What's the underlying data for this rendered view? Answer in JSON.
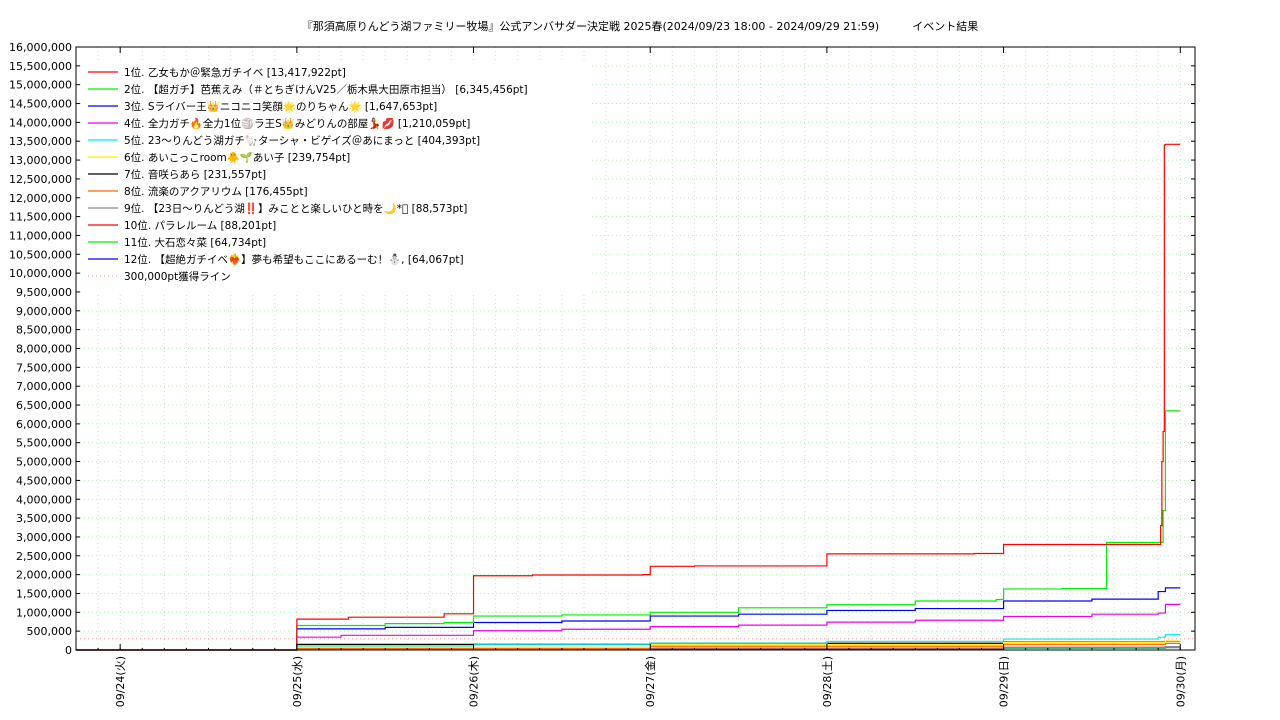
{
  "chart_data": {
    "type": "line",
    "title": "『那須高原りんどう湖ファミリー牧場』公式アンバサダー決定戦 2025春(2024/09/23 18:00 - 2024/09/29 21:59)　　　イベント結果",
    "xlabel": "",
    "ylabel": "",
    "ylim": [
      0,
      16000000
    ],
    "yticks": [
      0,
      500000,
      1000000,
      1500000,
      2000000,
      2500000,
      3000000,
      3500000,
      4000000,
      4500000,
      5000000,
      5500000,
      6000000,
      6500000,
      7000000,
      7500000,
      8000000,
      8500000,
      9000000,
      9500000,
      10000000,
      10500000,
      11000000,
      11500000,
      12000000,
      12500000,
      13000000,
      13500000,
      14000000,
      14500000,
      15000000,
      15500000,
      16000000
    ],
    "ytick_labels": [
      "0",
      "500,000",
      "1,000,000",
      "1,500,000",
      "2,000,000",
      "2,500,000",
      "3,000,000",
      "3,500,000",
      "4,000,000",
      "4,500,000",
      "5,000,000",
      "5,500,000",
      "6,000,000",
      "6,500,000",
      "7,000,000",
      "7,500,000",
      "8,000,000",
      "8,500,000",
      "9,000,000",
      "9,500,000",
      "10,000,000",
      "10,500,000",
      "11,000,000",
      "11,500,000",
      "12,000,000",
      "12,500,000",
      "13,000,000",
      "13,500,000",
      "14,000,000",
      "14,500,000",
      "15,000,000",
      "15,500,000",
      "16,000,000"
    ],
    "xlim": [
      "2024-09-23 18:00",
      "2024-09-30 02:00"
    ],
    "xticks": [
      "2024-09-24 00:00",
      "2024-09-25 00:00",
      "2024-09-26 00:00",
      "2024-09-27 00:00",
      "2024-09-28 00:00",
      "2024-09-29 00:00",
      "2024-09-30 00:00"
    ],
    "xtick_labels": [
      "09/24(火)",
      "09/25(水)",
      "09/26(木)",
      "09/27(金)",
      "09/28(土)",
      "09/29(日)",
      "09/30(月)"
    ],
    "grid": true,
    "legend_position": "top-left",
    "reference_line": {
      "name": "300,000pt獲得ライン",
      "value": 300000,
      "color": "#ff9999"
    },
    "series": [
      {
        "name": "1位. 乙女もか＠緊急ガチイベ [13,417,922pt]",
        "color": "#ff0000",
        "x": [
          "2024-09-23 18:00",
          "2024-09-25 00:00",
          "2024-09-25 06:00",
          "2024-09-25 07:00",
          "2024-09-25 20:00",
          "2024-09-26 00:00",
          "2024-09-26 08:00",
          "2024-09-26 23:00",
          "2024-09-27 00:00",
          "2024-09-27 06:00",
          "2024-09-28 00:00",
          "2024-09-28 20:00",
          "2024-09-29 00:00",
          "2024-09-29 21:00",
          "2024-09-29 21:20",
          "2024-09-29 21:30",
          "2024-09-29 21:40",
          "2024-09-29 21:50",
          "2024-09-29 21:59",
          "2024-09-30 00:00"
        ],
        "y": [
          0,
          820000,
          820000,
          870000,
          960000,
          1970000,
          1990000,
          2000000,
          2220000,
          2230000,
          2550000,
          2560000,
          2800000,
          2800000,
          3300000,
          5000000,
          5800000,
          13400000,
          13417922,
          13417922
        ]
      },
      {
        "name": "2位. 【超ガチ】芭蕉えみ（＃とちぎけんV25／栃木県大田原市担当） [6,345,456pt]",
        "color": "#00ee00",
        "x": [
          "2024-09-23 18:00",
          "2024-09-25 00:00",
          "2024-09-25 12:00",
          "2024-09-25 20:00",
          "2024-09-26 00:00",
          "2024-09-26 12:00",
          "2024-09-27 00:00",
          "2024-09-27 12:00",
          "2024-09-28 00:00",
          "2024-09-28 12:00",
          "2024-09-28 23:00",
          "2024-09-29 00:00",
          "2024-09-29 08:00",
          "2024-09-29 14:00",
          "2024-09-29 21:00",
          "2024-09-29 21:40",
          "2024-09-29 21:59",
          "2024-09-30 00:00"
        ],
        "y": [
          0,
          650000,
          700000,
          730000,
          900000,
          930000,
          1000000,
          1120000,
          1200000,
          1300000,
          1340000,
          1620000,
          1630000,
          2850000,
          2860000,
          3700000,
          6345456,
          6345456
        ]
      },
      {
        "name": "3位. Sライバー王👑ニコニコ笑顔🌟のりちゃん🌟 [1,647,653pt]",
        "color": "#0000ff",
        "x": [
          "2024-09-23 18:00",
          "2024-09-25 00:00",
          "2024-09-25 12:00",
          "2024-09-26 00:00",
          "2024-09-26 12:00",
          "2024-09-27 00:00",
          "2024-09-27 12:00",
          "2024-09-28 00:00",
          "2024-09-28 12:00",
          "2024-09-29 00:00",
          "2024-09-29 12:00",
          "2024-09-29 21:00",
          "2024-09-29 21:59",
          "2024-09-30 00:00"
        ],
        "y": [
          0,
          560000,
          600000,
          730000,
          770000,
          900000,
          950000,
          1050000,
          1100000,
          1300000,
          1350000,
          1550000,
          1647653,
          1647653
        ]
      },
      {
        "name": "4位. 全力ガチ🔥全力1位🏐ラ王S👑みどりんの部屋💃💋 [1,210,059pt]",
        "color": "#ee00ee",
        "x": [
          "2024-09-23 18:00",
          "2024-09-25 00:00",
          "2024-09-25 06:00",
          "2024-09-26 00:00",
          "2024-09-26 12:00",
          "2024-09-27 00:00",
          "2024-09-27 12:00",
          "2024-09-28 00:00",
          "2024-09-28 12:00",
          "2024-09-29 00:00",
          "2024-09-29 12:00",
          "2024-09-29 21:00",
          "2024-09-29 21:59",
          "2024-09-30 00:00"
        ],
        "y": [
          0,
          340000,
          390000,
          510000,
          550000,
          620000,
          660000,
          740000,
          790000,
          890000,
          950000,
          980000,
          1210059,
          1210059
        ]
      },
      {
        "name": "5位. 23〜りんどう湖ガチ🦙ターシャ・ビゲイズ＠あにまっと [404,393pt]",
        "color": "#00eeee",
        "x": [
          "2024-09-23 18:00",
          "2024-09-25 00:00",
          "2024-09-26 00:00",
          "2024-09-27 00:00",
          "2024-09-28 00:00",
          "2024-09-29 00:00",
          "2024-09-29 21:00",
          "2024-09-29 21:59",
          "2024-09-30 00:00"
        ],
        "y": [
          0,
          110000,
          140000,
          180000,
          230000,
          290000,
          340000,
          404393,
          404393
        ]
      },
      {
        "name": "6位. あいこっこroom🐥🌱あい子 [239,754pt]",
        "color": "#ffee00",
        "x": [
          "2024-09-23 18:00",
          "2024-09-25 00:00",
          "2024-09-27 00:00",
          "2024-09-29 00:00",
          "2024-09-29 21:59",
          "2024-09-30 00:00"
        ],
        "y": [
          0,
          70000,
          140000,
          200000,
          239754,
          239754
        ]
      },
      {
        "name": "7位. 音咲らあら [231,557pt]",
        "color": "#000000",
        "x": [
          "2024-09-23 18:00",
          "2024-09-25 00:00",
          "2024-09-27 00:00",
          "2024-09-29 00:00",
          "2024-09-29 21:59",
          "2024-09-30 00:00"
        ],
        "y": [
          0,
          150000,
          180000,
          210000,
          231557,
          231557
        ]
      },
      {
        "name": "8位. 流楽のアクアリウム [176,455pt]",
        "color": "#ff6600",
        "x": [
          "2024-09-23 18:00",
          "2024-09-25 00:00",
          "2024-09-27 00:00",
          "2024-09-29 00:00",
          "2024-09-29 21:59",
          "2024-09-30 00:00"
        ],
        "y": [
          0,
          40000,
          100000,
          150000,
          176455,
          176455
        ]
      },
      {
        "name": "9位. 【23日〜りんどう湖‼️】みことと楽しいひと時を🌙*ﾟ [88,573pt]",
        "color": "#888888",
        "x": [
          "2024-09-23 18:00",
          "2024-09-25 00:00",
          "2024-09-27 00:00",
          "2024-09-29 00:00",
          "2024-09-29 21:59",
          "2024-09-30 00:00"
        ],
        "y": [
          0,
          30000,
          50000,
          70000,
          88573,
          88573
        ]
      },
      {
        "name": "10位. パラレルーム [88,201pt]",
        "color": "#ff0000",
        "x": [
          "2024-09-23 18:00",
          "2024-09-25 00:00",
          "2024-09-27 00:00",
          "2024-09-29 00:00",
          "2024-09-29 21:59",
          "2024-09-30 00:00"
        ],
        "y": [
          0,
          20000,
          40000,
          70000,
          88201,
          88201
        ]
      },
      {
        "name": "11位. 大石恋々菜 [64,734pt]",
        "color": "#00ee00",
        "x": [
          "2024-09-23 18:00",
          "2024-09-25 00:00",
          "2024-09-27 00:00",
          "2024-09-29 00:00",
          "2024-09-29 21:59",
          "2024-09-30 00:00"
        ],
        "y": [
          0,
          20000,
          40000,
          55000,
          64734,
          64734
        ]
      },
      {
        "name": "12位. 【超絶ガチイベ❤️‍🔥】夢も希望もここにあるーむ！⛄️, [64,067pt]",
        "color": "#0000ff",
        "x": [
          "2024-09-23 18:00",
          "2024-09-25 00:00",
          "2024-09-27 00:00",
          "2024-09-29 00:00",
          "2024-09-29 21:59",
          "2024-09-30 00:00"
        ],
        "y": [
          0,
          10000,
          30000,
          50000,
          64067,
          64067
        ]
      }
    ]
  }
}
